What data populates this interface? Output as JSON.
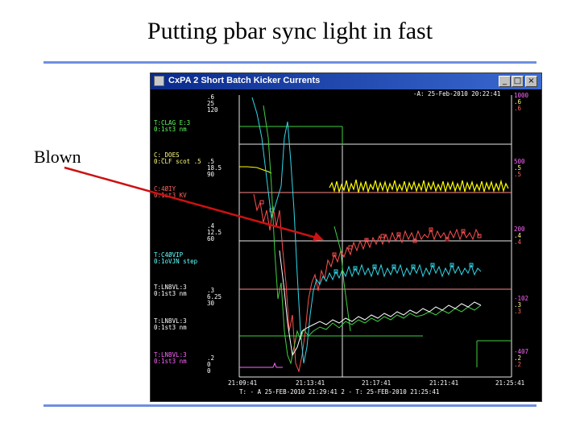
{
  "slide": {
    "title": "Putting pbar sync light in fast",
    "annotation": "Blown"
  },
  "window": {
    "title": "CxPA 2 Short Batch Kicker Currents",
    "controls": [
      "_",
      "□",
      "×"
    ],
    "timestamp_header": "-A: 25-Feb-2010 20:22:41"
  },
  "plot": {
    "left_axis_scales": [
      {
        "values": [
          ".6",
          "25",
          "120"
        ]
      },
      {
        "values": [
          ".5",
          "18.5",
          "90"
        ]
      },
      {
        "values": [
          ".4",
          "12.5",
          "60"
        ]
      },
      {
        "values": [
          ".3",
          "6.25",
          "30"
        ]
      },
      {
        "values": [
          ".2",
          "0",
          "0"
        ]
      }
    ],
    "channel_labels": [
      {
        "name": "T:CLAG E:3",
        "unit": "0:1st3 nm"
      },
      {
        "name": "C:_DOES",
        "unit": "0:CLF  scot .5"
      },
      {
        "name": "C:4ØIY",
        "unit": "0:1st3 KV"
      },
      {
        "name": "T:C4ØVIP",
        "unit": "0:1oVJN step"
      },
      {
        "name": "T:LN8VL:3",
        "unit": "0:1st3 nm"
      },
      {
        "name": "T:LN8VL:3",
        "unit": "0:1st3 nm"
      },
      {
        "name": "T:LN8VL:3",
        "unit": "0:1st3 nm"
      }
    ],
    "right_axis_labels": [
      "1000",
      ".6",
      ".6",
      "500",
      ".5",
      ".5",
      "200",
      ".4",
      ".4",
      "-102",
      ".3",
      ".3",
      "-407",
      ".2",
      ".2"
    ],
    "x_ticks": [
      "21:09:41",
      "21:13:41",
      "21:17:41",
      "21:21:41",
      "21:25:41"
    ],
    "footer": "T: -  A 25-FEB-2010 21:29:41        2 - T: 25-FEB-2010 21:25:41"
  },
  "colors": {
    "arrow": "#cc1111",
    "rule": "#6f8fe0",
    "trace_yellow": "#ffff00",
    "trace_red": "#ff5050",
    "trace_cyan": "#30d8e8",
    "trace_green": "#40d040",
    "trace_white": "#ffffff",
    "label_magenta": "#ff00ff",
    "label_yellow": "#ffff80",
    "label_cyan": "#60ffff"
  }
}
